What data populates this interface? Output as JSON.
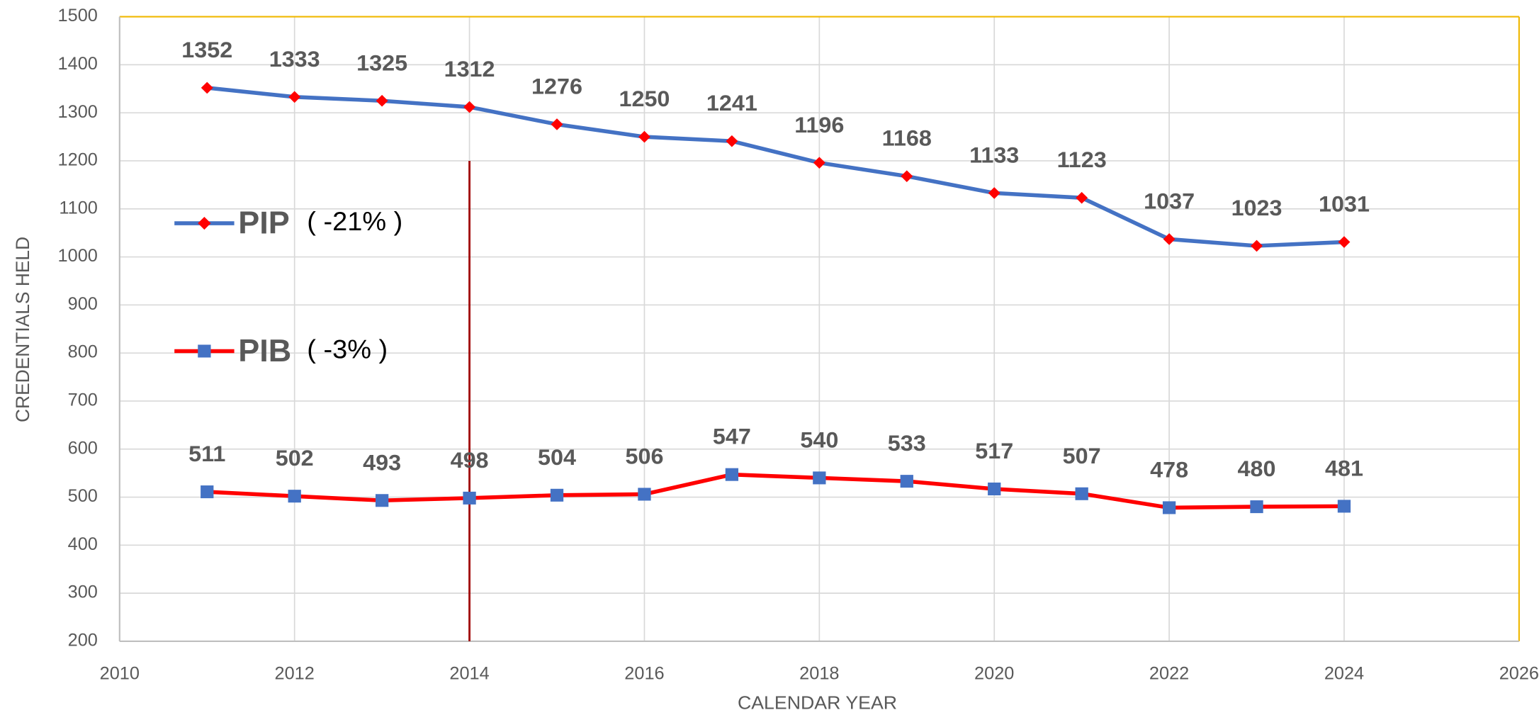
{
  "chart_data": {
    "type": "line",
    "x_label": "CALENDAR YEAR",
    "y_label": "CREDENTIALS HELD",
    "x": [
      2011,
      2012,
      2013,
      2014,
      2015,
      2016,
      2017,
      2018,
      2019,
      2020,
      2021,
      2022,
      2023,
      2024
    ],
    "series": [
      {
        "name": "PIP",
        "color": "#4472c4",
        "marker": "diamond",
        "marker_color": "#ff0000",
        "values": [
          1352,
          1333,
          1325,
          1312,
          1276,
          1250,
          1241,
          1196,
          1168,
          1133,
          1123,
          1037,
          1023,
          1031
        ]
      },
      {
        "name": "PIB",
        "color": "#ff0000",
        "marker": "square",
        "marker_color": "#4472c4",
        "values": [
          511,
          502,
          493,
          498,
          504,
          506,
          547,
          540,
          533,
          517,
          507,
          478,
          480,
          481
        ]
      }
    ],
    "annotations": [
      "( -21% )",
      "( -3% )"
    ],
    "vline_x": 2014,
    "vline_color": "#a00000",
    "xlim": [
      2010,
      2026
    ],
    "xticks": [
      2010,
      2012,
      2014,
      2016,
      2018,
      2020,
      2022,
      2024,
      2026
    ],
    "ylim": [
      200,
      1500
    ],
    "yticks": [
      200,
      300,
      400,
      500,
      600,
      700,
      800,
      900,
      1000,
      1100,
      1200,
      1300,
      1400,
      1500
    ],
    "grid": true
  }
}
